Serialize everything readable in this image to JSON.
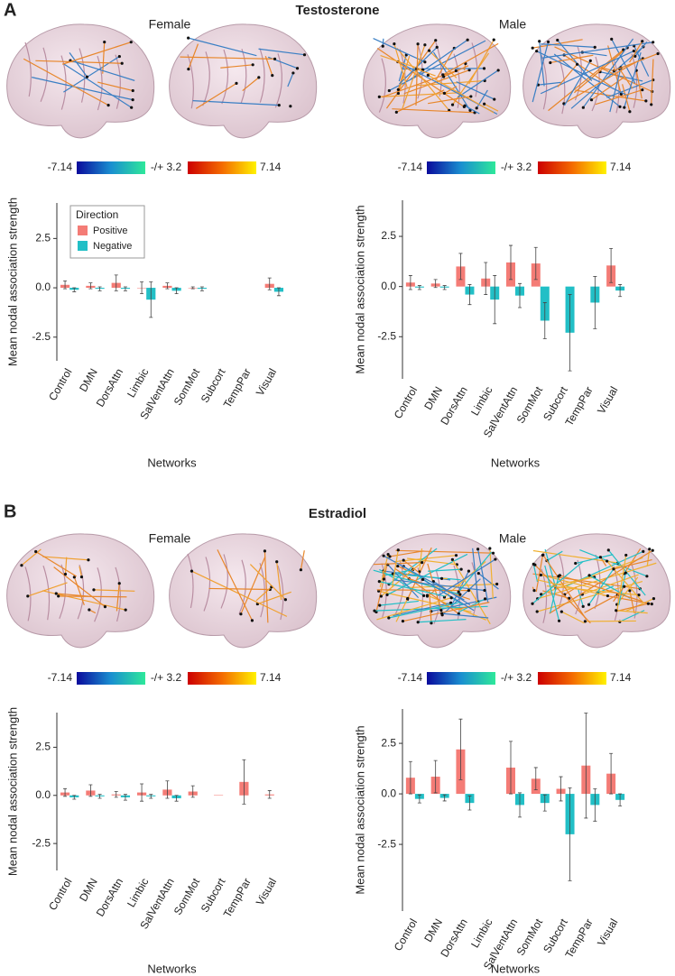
{
  "panels": [
    {
      "label": "A",
      "title": "Testosterone"
    },
    {
      "label": "B",
      "title": "Estradiol"
    }
  ],
  "colorbar": {
    "min": -7.14,
    "threshold": {
      "value": 3.2,
      "label": "-/+ 3.2"
    },
    "max": 7.14
  },
  "chart_data": [
    {
      "type": "bar",
      "title": "Female",
      "xlabel": "Networks",
      "ylabel": "Mean nodal association strength",
      "categories": [
        "Control",
        "DMN",
        "DorsAttn",
        "Limbic",
        "SalVentAttn",
        "SomMot",
        "Subcort",
        "TempPar",
        "Visual"
      ],
      "legend": true,
      "legend_title": "Direction",
      "series": [
        {
          "name": "Positive",
          "color": "#f47c76",
          "values": [
            0.15,
            0.1,
            0.25,
            0,
            0.1,
            0,
            null,
            null,
            0.2
          ],
          "errors": [
            0.2,
            0.15,
            0.4,
            0.3,
            0.15,
            0.05,
            null,
            null,
            0.3
          ]
        },
        {
          "name": "Negative",
          "color": "#22bfc6",
          "values": [
            -0.1,
            -0.05,
            -0.05,
            -0.6,
            -0.15,
            -0.05,
            null,
            null,
            -0.2
          ],
          "errors": [
            0.1,
            0.1,
            0.1,
            0.9,
            0.15,
            0.1,
            null,
            null,
            0.2
          ]
        }
      ],
      "ylim": [
        -3.7,
        4.3
      ],
      "yticks": [
        -2.5,
        {
          "value": 0,
          "label": "0.0"
        },
        2.5
      ]
    },
    {
      "type": "bar",
      "title": "Male",
      "xlabel": "Networks",
      "ylabel": "Mean nodal association strength",
      "categories": [
        "Control",
        "DMN",
        "DorsAttn",
        "Limbic",
        "SalVentAttn",
        "SomMot",
        "Subcort",
        "TempPar",
        "Visual"
      ],
      "legend": false,
      "series": [
        {
          "color": "#f47c76",
          "values": [
            0.2,
            0.15,
            1.0,
            0.4,
            1.2,
            1.15,
            null,
            null,
            1.05
          ],
          "errors": [
            0.35,
            0.2,
            0.65,
            0.8,
            0.85,
            0.8,
            null,
            null,
            0.85
          ]
        },
        {
          "color": "#22bfc6",
          "values": [
            -0.05,
            -0.05,
            -0.4,
            -0.65,
            -0.45,
            -1.7,
            -2.3,
            -0.8,
            -0.2
          ],
          "errors": [
            0.1,
            0.1,
            0.5,
            1.2,
            0.6,
            0.9,
            1.9,
            1.3,
            0.3
          ]
        }
      ],
      "ylim": [
        -4.6,
        4.3
      ],
      "yticks": [
        -2.5,
        {
          "value": 0,
          "label": "0.0"
        },
        2.5
      ]
    },
    {
      "type": "bar",
      "title": "Female",
      "xlabel": "Networks",
      "ylabel": "Mean nodal association strength",
      "categories": [
        "Control",
        "DMN",
        "DorsAttn",
        "Limbic",
        "SalVentAttn",
        "SomMot",
        "Subcort",
        "TempPar",
        "Visual"
      ],
      "legend": false,
      "series": [
        {
          "color": "#f47c76",
          "values": [
            0.15,
            0.25,
            0.05,
            0.15,
            0.3,
            0.2,
            0.02,
            0.7,
            0.05
          ],
          "errors": [
            0.2,
            0.3,
            0.15,
            0.45,
            0.45,
            0.3,
            null,
            1.15,
            0.2
          ]
        },
        {
          "color": "#22bfc6",
          "values": [
            -0.1,
            -0.05,
            -0.1,
            -0.05,
            -0.15,
            null,
            null,
            null,
            null
          ],
          "errors": [
            0.1,
            0.1,
            0.15,
            0.1,
            0.15,
            null,
            null,
            null,
            null
          ]
        }
      ],
      "ylim": [
        -3.9,
        4.3
      ],
      "yticks": [
        -2.5,
        {
          "value": 0,
          "label": "0.0"
        },
        2.5
      ]
    },
    {
      "type": "bar",
      "title": "Male",
      "xlabel": "Networks",
      "ylabel": "Mean nodal association strength",
      "categories": [
        "Control",
        "DMN",
        "DorsAttn",
        "Limbic",
        "SalVentAttn",
        "SomMot",
        "Subcort",
        "TempPar",
        "Visual"
      ],
      "legend": false,
      "series": [
        {
          "color": "#f47c76",
          "values": [
            0.8,
            0.85,
            2.2,
            null,
            1.3,
            0.75,
            0.25,
            1.4,
            1.0
          ],
          "errors": [
            0.8,
            0.8,
            1.5,
            null,
            1.3,
            0.55,
            0.6,
            2.6,
            1.0
          ]
        },
        {
          "color": "#22bfc6",
          "values": [
            -0.25,
            -0.2,
            -0.45,
            null,
            -0.55,
            -0.45,
            -2.0,
            -0.55,
            -0.3
          ],
          "errors": [
            0.2,
            0.15,
            0.35,
            null,
            0.6,
            0.4,
            2.3,
            0.8,
            0.3
          ]
        }
      ],
      "ylim": [
        -5.8,
        4.2
      ],
      "yticks": [
        -2.5,
        {
          "value": 0,
          "label": "0.0"
        },
        2.5
      ]
    }
  ]
}
